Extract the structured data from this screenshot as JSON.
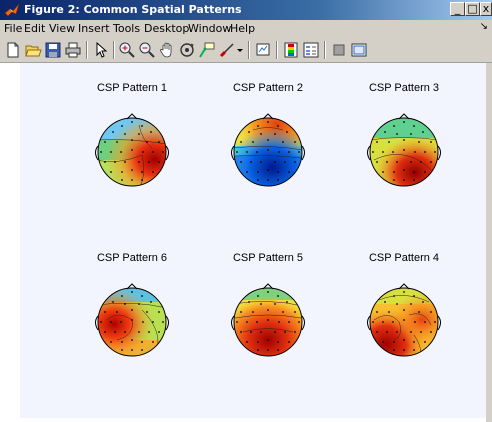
{
  "window": {
    "title": "Figure 2: Common Spatial Patterns",
    "minimize_label": "_",
    "maximize_label": "□",
    "close_label": "x"
  },
  "menubar": {
    "items": [
      "File",
      "Edit",
      "View",
      "Insert",
      "Tools",
      "Desktop",
      "Window",
      "Help"
    ],
    "overflow_arrow": "↘"
  },
  "toolbar": {
    "buttons": [
      "new-figure",
      "open-file",
      "save-figure",
      "print-figure",
      "edit-plot",
      "zoom-in",
      "zoom-out",
      "pan",
      "rotate-3d",
      "data-cursor",
      "brush",
      "link-plot",
      "insert-colorbar",
      "insert-legend",
      "hide-plot-tools",
      "show-plot-tools"
    ]
  },
  "plots": [
    {
      "title": "CSP Pattern 1"
    },
    {
      "title": "CSP Pattern 2"
    },
    {
      "title": "CSP Pattern 3"
    },
    {
      "title": "CSP Pattern 6"
    },
    {
      "title": "CSP Pattern 5"
    },
    {
      "title": "CSP Pattern 4"
    }
  ],
  "colors": {
    "figure_bg": "#f2f5fe",
    "chrome": "#d4d0c8",
    "title_gradient_start": "#0a246a",
    "title_gradient_end": "#a6caf0"
  }
}
